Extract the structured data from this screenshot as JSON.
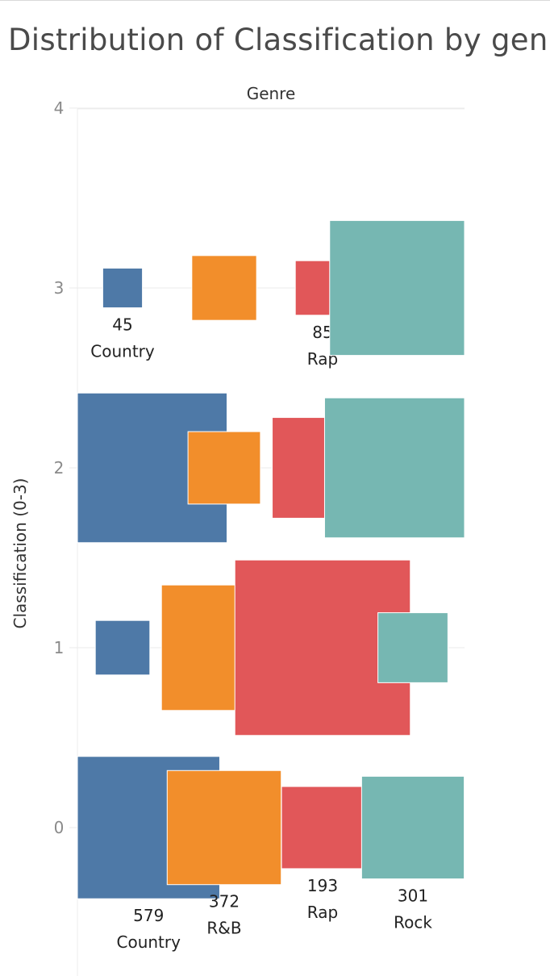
{
  "chart_data": {
    "type": "heatmap",
    "title": "Distribution of Classification by gen",
    "column_header": "Genre",
    "ylabel": "Classification (0-3)",
    "ylim": [
      -0.8,
      4
    ],
    "y_ticks": [
      "0",
      "1",
      "2",
      "3",
      "4"
    ],
    "categories": [
      "Country",
      "R&B",
      "Rap",
      "Rock"
    ],
    "colors": {
      "Country": "#4e79a7",
      "R&B": "#f28e2b",
      "Rap": "#e15759",
      "Rock": "#76b7b2"
    },
    "rows": [
      {
        "classification": 3,
        "cells": [
          {
            "genre": "Country",
            "value": 45,
            "show_label": true
          },
          {
            "genre": "R&B",
            "value": 120,
            "show_label": false
          },
          {
            "genre": "Rap",
            "value": 85,
            "show_label": true
          },
          {
            "genre": "Rock",
            "value": 520,
            "show_label": false
          }
        ]
      },
      {
        "classification": 2,
        "cells": [
          {
            "genre": "Country",
            "value": 640,
            "show_label": false
          },
          {
            "genre": "R&B",
            "value": 150,
            "show_label": false
          },
          {
            "genre": "Rap",
            "value": 290,
            "show_label": false
          },
          {
            "genre": "Rock",
            "value": 560,
            "show_label": false
          }
        ]
      },
      {
        "classification": 1,
        "cells": [
          {
            "genre": "Country",
            "value": 85,
            "show_label": false
          },
          {
            "genre": "R&B",
            "value": 450,
            "show_label": false
          },
          {
            "genre": "Rap",
            "value": 880,
            "show_label": false
          },
          {
            "genre": "Rock",
            "value": 140,
            "show_label": false
          }
        ]
      },
      {
        "classification": 0,
        "cells": [
          {
            "genre": "Country",
            "value": 579,
            "show_label": true
          },
          {
            "genre": "R&B",
            "value": 372,
            "show_label": true
          },
          {
            "genre": "Rap",
            "value": 193,
            "show_label": true
          },
          {
            "genre": "Rock",
            "value": 301,
            "show_label": true
          }
        ]
      }
    ]
  }
}
